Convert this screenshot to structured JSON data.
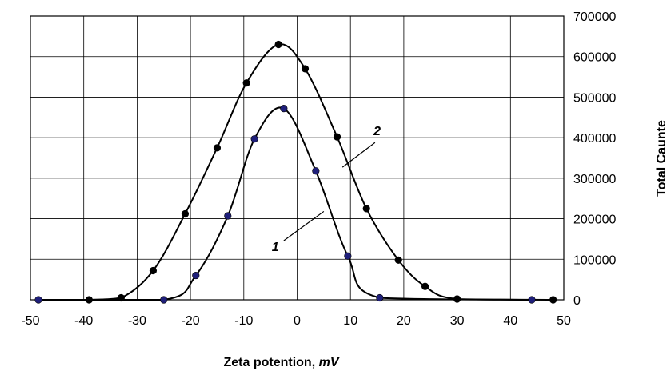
{
  "chart_data": {
    "type": "scatter",
    "title": "",
    "xlabel_main": "Zeta potention, ",
    "xlabel_unit": "mV",
    "ylabel": "Total Caunte",
    "xlim": [
      -50,
      50
    ],
    "ylim": [
      0,
      700000
    ],
    "x_ticks": [
      -50,
      -40,
      -30,
      -20,
      -10,
      0,
      10,
      20,
      30,
      40,
      50
    ],
    "y_ticks": [
      0,
      100000,
      200000,
      300000,
      400000,
      500000,
      600000,
      700000
    ],
    "grid": true,
    "y_axis_side": "right",
    "series": [
      {
        "label": "1",
        "marker_color": "#1f1f7a",
        "points": [
          [
            -48.5,
            0
          ],
          [
            -25,
            0
          ],
          [
            -19,
            60000
          ],
          [
            -13,
            207000
          ],
          [
            -8,
            397000
          ],
          [
            -2.5,
            472000
          ],
          [
            3.5,
            318000
          ],
          [
            9.5,
            108000
          ],
          [
            15.5,
            5000
          ],
          [
            44,
            0
          ]
        ]
      },
      {
        "label": "2",
        "marker_color": "#000000",
        "points": [
          [
            -39,
            0
          ],
          [
            -33,
            5000
          ],
          [
            -27,
            72000
          ],
          [
            -21,
            212000
          ],
          [
            -15,
            375000
          ],
          [
            -9.5,
            535000
          ],
          [
            -3.5,
            630000
          ],
          [
            1.5,
            570000
          ],
          [
            7.5,
            402000
          ],
          [
            13,
            225000
          ],
          [
            19,
            98000
          ],
          [
            24,
            33000
          ],
          [
            30,
            2000
          ],
          [
            48,
            0
          ]
        ]
      }
    ]
  }
}
